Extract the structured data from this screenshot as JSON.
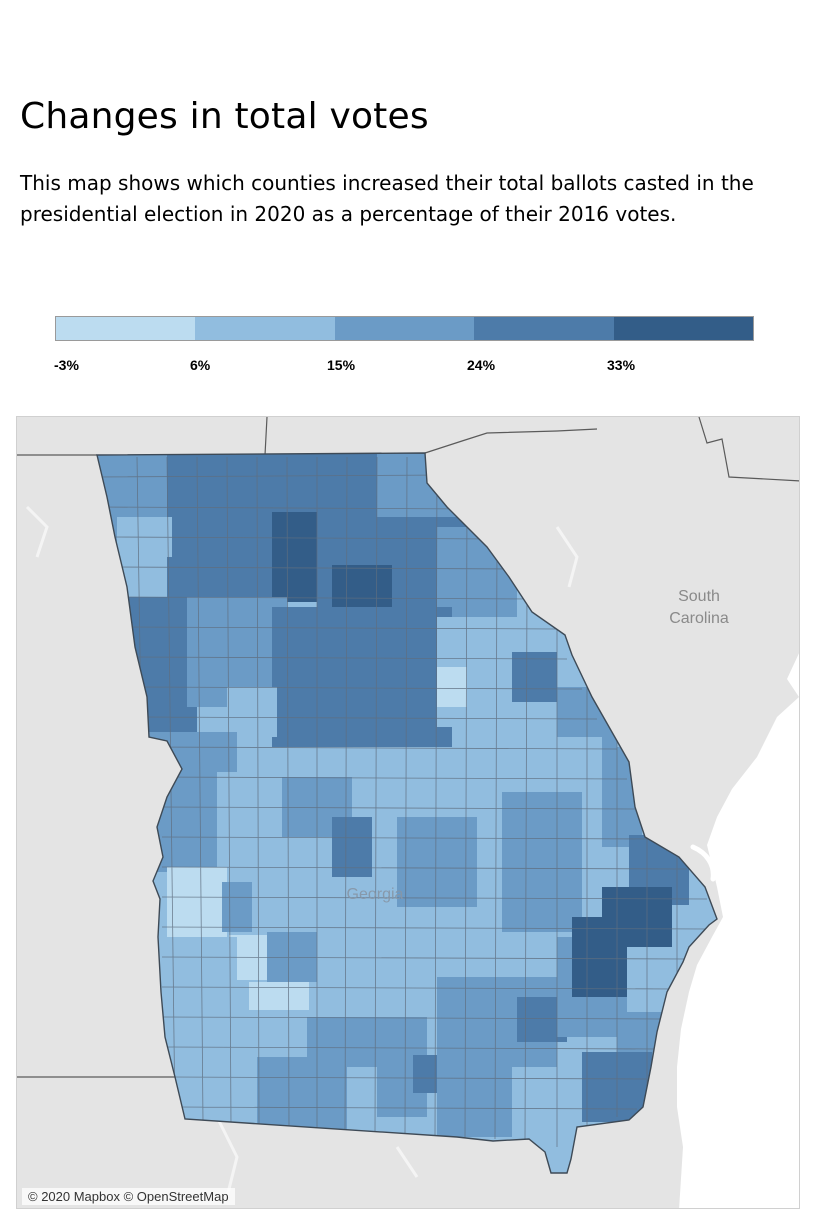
{
  "header": {
    "title": "Changes in total votes",
    "description": "This map shows which counties increased their total ballots casted in the presidential election in 2020 as a percentage of their 2016 votes."
  },
  "legend": {
    "ticks": [
      "-3%",
      "6%",
      "15%",
      "24%",
      "33%"
    ],
    "colors": [
      "#bcdcf0",
      "#91bddf",
      "#6b9bc6",
      "#4d7ba9",
      "#335d88"
    ]
  },
  "map": {
    "labels": {
      "south_carolina_line1": "South",
      "south_carolina_line2": "Carolina",
      "georgia": "Georgia"
    },
    "attribution": "© 2020 Mapbox © OpenStreetMap",
    "colors": {
      "land": "#e4e4e4",
      "water": "#ffffff",
      "border": "#4a4a4a",
      "county_line": "#5f6f80",
      "label": "#8a8a8a"
    }
  }
}
